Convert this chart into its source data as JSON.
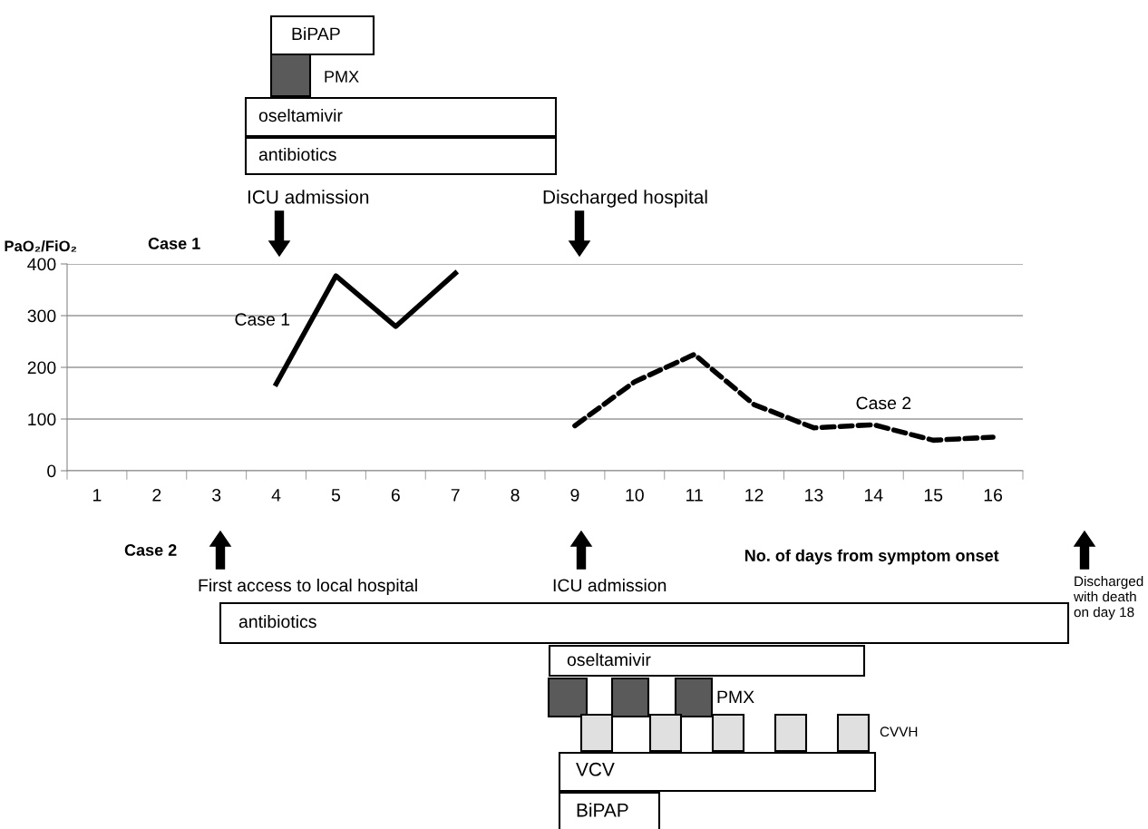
{
  "chart_data": [
    {
      "type": "other",
      "annotations": [
        "BiPAP",
        "PMX",
        "oseltamivir",
        "antibiotics",
        "ICU admission",
        "Discharged hospital",
        "Case 1"
      ]
    },
    {
      "type": "line",
      "ylabel": "PaO₂/FiO₂",
      "xlabel": "No. of days from symptom onset",
      "categories": [
        "1",
        "2",
        "3",
        "4",
        "5",
        "6",
        "7",
        "8",
        "9",
        "10",
        "11",
        "12",
        "13",
        "14",
        "15",
        "16"
      ],
      "series": [
        {
          "name": "Case 1",
          "color": "#000000",
          "line_style": "solid",
          "values": [
            null,
            null,
            null,
            168,
            377,
            279,
            382,
            null,
            null,
            null,
            null,
            null,
            null,
            null,
            null,
            null
          ]
        },
        {
          "name": "Case 2",
          "color": "#000000",
          "line_style": "dashed",
          "values": [
            null,
            null,
            null,
            null,
            null,
            null,
            null,
            null,
            87,
            172,
            225,
            128,
            83,
            89,
            59,
            65
          ]
        }
      ],
      "ylim": [
        0,
        400
      ],
      "yticks": [
        0,
        100,
        200,
        300,
        400
      ],
      "grid": "y",
      "legend": false
    },
    {
      "type": "other",
      "annotations": [
        "Case 2",
        "First access to local hospital",
        "ICU admission",
        "Discharged with death on day 18",
        "antibiotics",
        "oseltamivir",
        "PMX",
        "CVVH",
        "VCV",
        "BiPAP"
      ]
    }
  ]
}
